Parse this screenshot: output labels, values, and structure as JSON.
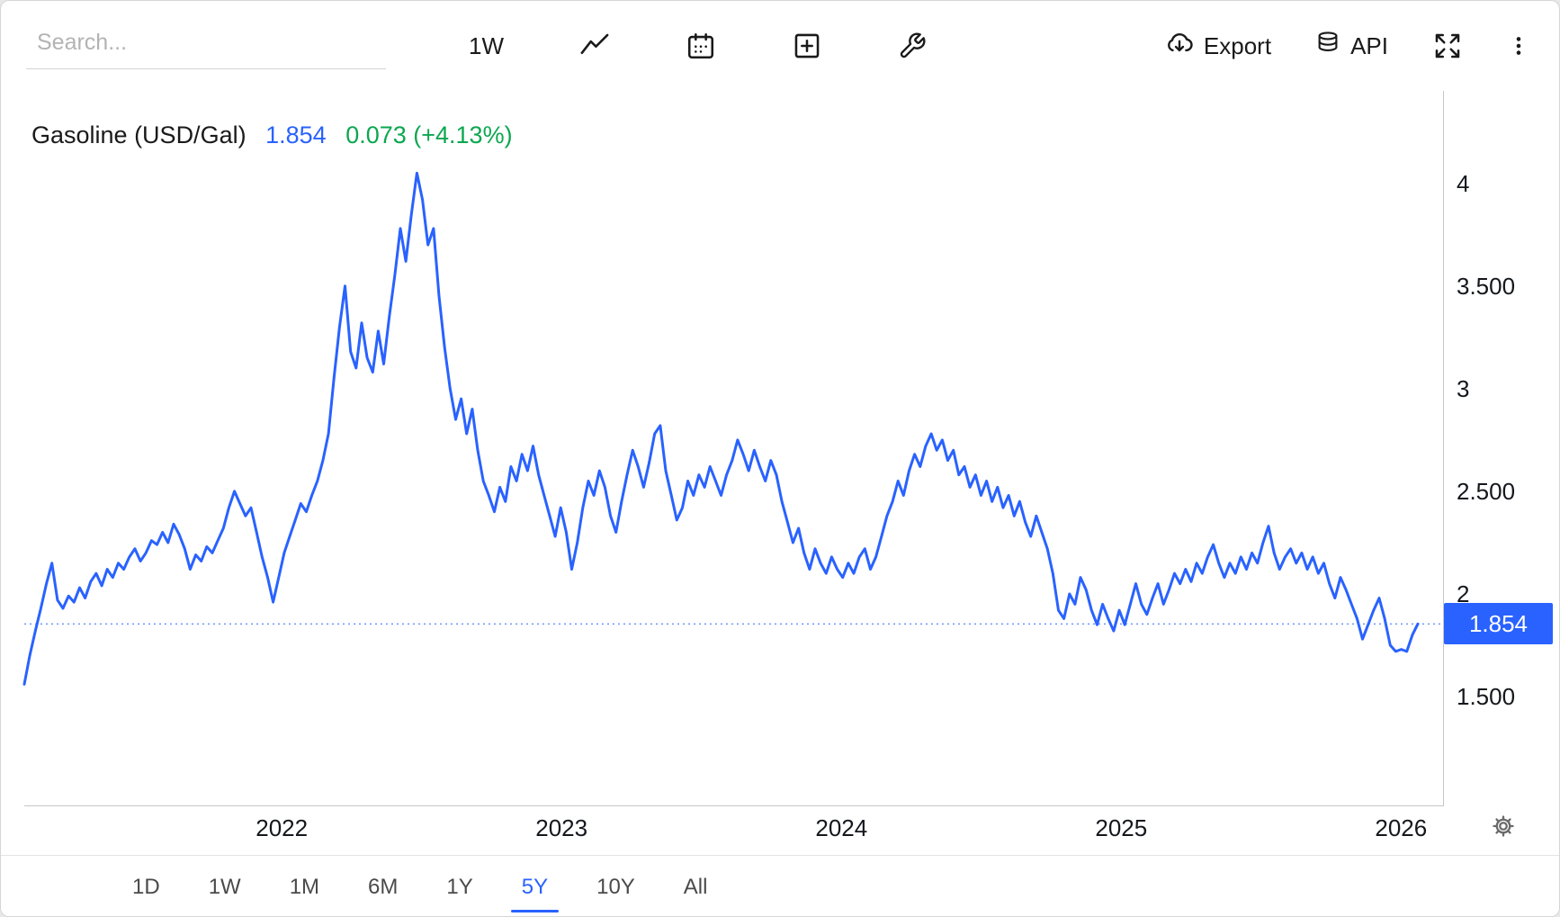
{
  "toolbar": {
    "search_placeholder": "Search...",
    "interval_label": "1W",
    "export_label": "Export",
    "api_label": "API"
  },
  "header": {
    "title": "Gasoline (USD/Gal)",
    "price": "1.854",
    "change": "0.073 (+4.13%)"
  },
  "price_badge": "1.854",
  "colors": {
    "line": "#2962FF",
    "badge_bg": "#2962FF",
    "price_text": "#2962FF",
    "change_positive": "#0CA750",
    "range_active": "#2962FF",
    "axis_line": "#c6c6c6"
  },
  "range_selector": {
    "options": [
      "1D",
      "1W",
      "1M",
      "6M",
      "1Y",
      "5Y",
      "10Y",
      "All"
    ],
    "active": "5Y"
  },
  "chart_data": {
    "type": "line",
    "title": "Gasoline (USD/Gal)",
    "unit": "USD/Gal",
    "interval": "1W",
    "range": "5Y",
    "current_value": 1.854,
    "change": 0.073,
    "change_pct": "+4.13%",
    "grid": false,
    "legend": false,
    "x_domain": [
      2021.08,
      2026.15
    ],
    "x_series_range": [
      2021.08,
      2026.06
    ],
    "y_domain": [
      0.97,
      4.45
    ],
    "y_ticks": [
      {
        "label": "4",
        "value": 4
      },
      {
        "label": "3.500",
        "value": 3.5
      },
      {
        "label": "3",
        "value": 3
      },
      {
        "label": "2.500",
        "value": 2.5
      },
      {
        "label": "2",
        "value": 2
      },
      {
        "label": "1.500",
        "value": 1.5
      }
    ],
    "x_ticks": [
      {
        "label": "2022",
        "value": 2022
      },
      {
        "label": "2023",
        "value": 2023
      },
      {
        "label": "2024",
        "value": 2024
      },
      {
        "label": "2025",
        "value": 2025
      },
      {
        "label": "2026",
        "value": 2026
      }
    ],
    "values": [
      1.56,
      1.7,
      1.82,
      1.93,
      2.05,
      2.15,
      1.97,
      1.93,
      1.99,
      1.96,
      2.03,
      1.98,
      2.06,
      2.1,
      2.04,
      2.12,
      2.08,
      2.15,
      2.12,
      2.18,
      2.22,
      2.16,
      2.2,
      2.26,
      2.24,
      2.3,
      2.25,
      2.34,
      2.29,
      2.22,
      2.12,
      2.19,
      2.16,
      2.23,
      2.2,
      2.26,
      2.32,
      2.42,
      2.5,
      2.44,
      2.38,
      2.42,
      2.3,
      2.18,
      2.08,
      1.96,
      2.08,
      2.2,
      2.28,
      2.36,
      2.44,
      2.4,
      2.48,
      2.55,
      2.65,
      2.78,
      3.05,
      3.3,
      3.5,
      3.18,
      3.1,
      3.32,
      3.15,
      3.08,
      3.28,
      3.12,
      3.35,
      3.55,
      3.78,
      3.62,
      3.85,
      4.05,
      3.92,
      3.7,
      3.78,
      3.45,
      3.2,
      3.0,
      2.85,
      2.95,
      2.78,
      2.9,
      2.7,
      2.55,
      2.48,
      2.4,
      2.52,
      2.45,
      2.62,
      2.55,
      2.68,
      2.6,
      2.72,
      2.58,
      2.48,
      2.38,
      2.28,
      2.42,
      2.3,
      2.12,
      2.25,
      2.42,
      2.55,
      2.48,
      2.6,
      2.52,
      2.38,
      2.3,
      2.45,
      2.58,
      2.7,
      2.62,
      2.52,
      2.64,
      2.78,
      2.82,
      2.6,
      2.48,
      2.36,
      2.42,
      2.55,
      2.48,
      2.58,
      2.52,
      2.62,
      2.55,
      2.48,
      2.58,
      2.65,
      2.75,
      2.68,
      2.6,
      2.7,
      2.62,
      2.55,
      2.65,
      2.58,
      2.45,
      2.35,
      2.25,
      2.32,
      2.2,
      2.12,
      2.22,
      2.15,
      2.1,
      2.18,
      2.12,
      2.08,
      2.15,
      2.1,
      2.18,
      2.22,
      2.12,
      2.18,
      2.28,
      2.38,
      2.45,
      2.55,
      2.48,
      2.6,
      2.68,
      2.62,
      2.72,
      2.78,
      2.7,
      2.75,
      2.65,
      2.7,
      2.58,
      2.62,
      2.52,
      2.58,
      2.48,
      2.55,
      2.45,
      2.52,
      2.42,
      2.48,
      2.38,
      2.45,
      2.35,
      2.28,
      2.38,
      2.3,
      2.22,
      2.1,
      1.92,
      1.88,
      2.0,
      1.95,
      2.08,
      2.02,
      1.92,
      1.85,
      1.95,
      1.88,
      1.82,
      1.92,
      1.85,
      1.95,
      2.05,
      1.95,
      1.9,
      1.98,
      2.05,
      1.95,
      2.02,
      2.1,
      2.05,
      2.12,
      2.06,
      2.15,
      2.1,
      2.18,
      2.24,
      2.15,
      2.08,
      2.15,
      2.1,
      2.18,
      2.12,
      2.2,
      2.15,
      2.25,
      2.33,
      2.2,
      2.12,
      2.18,
      2.22,
      2.15,
      2.2,
      2.12,
      2.18,
      2.1,
      2.15,
      2.05,
      1.98,
      2.08,
      2.02,
      1.95,
      1.88,
      1.78,
      1.85,
      1.92,
      1.98,
      1.88,
      1.75,
      1.72,
      1.73,
      1.72,
      1.8,
      1.854
    ]
  }
}
